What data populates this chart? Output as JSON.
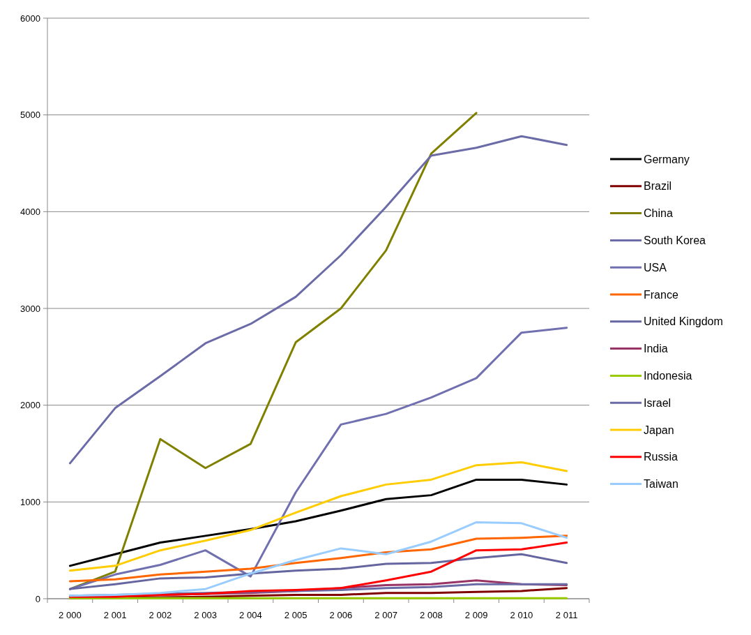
{
  "chart_data": {
    "type": "line",
    "categories": [
      "2 000",
      "2 001",
      "2 002",
      "2 003",
      "2 004",
      "2 005",
      "2 006",
      "2 007",
      "2 008",
      "2 009",
      "2 010",
      "2 011"
    ],
    "ylim": [
      0,
      6000
    ],
    "yticks": [
      0,
      1000,
      2000,
      3000,
      4000,
      5000,
      6000
    ],
    "grid": "y",
    "legend": "right",
    "series": [
      {
        "name": "Germany",
        "color": "#000000",
        "values": [
          340,
          460,
          580,
          650,
          720,
          800,
          910,
          1030,
          1070,
          1230,
          1230,
          1180
        ]
      },
      {
        "name": "Brazil",
        "color": "#800000",
        "values": [
          5,
          10,
          15,
          20,
          30,
          40,
          40,
          60,
          60,
          70,
          80,
          110
        ]
      },
      {
        "name": "China",
        "color": "#808000",
        "values": [
          100,
          280,
          1650,
          1350,
          1600,
          2650,
          3000,
          3600,
          4600,
          5020,
          null,
          null
        ]
      },
      {
        "name": "South Korea",
        "color": "#6b6ba8",
        "values": [
          1400,
          1970,
          2300,
          2640,
          2840,
          3120,
          3550,
          4050,
          4580,
          4660,
          4780,
          4690
        ]
      },
      {
        "name": "USA",
        "color": "#7070b0",
        "values": [
          100,
          250,
          350,
          500,
          230,
          1100,
          1800,
          1910,
          2080,
          2280,
          2750,
          2800
        ]
      },
      {
        "name": "France",
        "color": "#ff6600",
        "values": [
          180,
          200,
          250,
          280,
          310,
          370,
          420,
          480,
          510,
          620,
          630,
          650
        ]
      },
      {
        "name": "United Kingdom",
        "color": "#65659f",
        "values": [
          100,
          150,
          210,
          220,
          260,
          290,
          310,
          360,
          370,
          420,
          460,
          370
        ]
      },
      {
        "name": "India",
        "color": "#993366",
        "values": [
          20,
          30,
          40,
          50,
          60,
          80,
          110,
          140,
          150,
          190,
          150,
          140
        ]
      },
      {
        "name": "Indonesia",
        "color": "#99cc00",
        "values": [
          5,
          5,
          5,
          5,
          5,
          5,
          5,
          5,
          5,
          5,
          5,
          5
        ]
      },
      {
        "name": "Israel",
        "color": "#6a6aa6",
        "values": [
          30,
          40,
          50,
          60,
          70,
          80,
          90,
          110,
          120,
          150,
          150,
          150
        ]
      },
      {
        "name": "Japan",
        "color": "#ffcc00",
        "values": [
          290,
          340,
          500,
          600,
          710,
          890,
          1060,
          1180,
          1230,
          1380,
          1410,
          1320
        ]
      },
      {
        "name": "Russia",
        "color": "#ff0000",
        "values": [
          20,
          20,
          40,
          50,
          80,
          90,
          110,
          190,
          280,
          500,
          510,
          580
        ]
      },
      {
        "name": "Taiwan",
        "color": "#99ccff",
        "values": [
          30,
          40,
          60,
          100,
          260,
          400,
          520,
          460,
          590,
          790,
          780,
          630
        ]
      }
    ]
  }
}
